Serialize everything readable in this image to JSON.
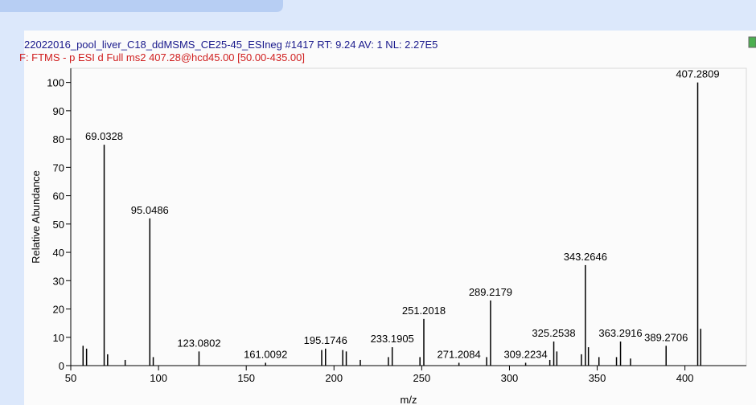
{
  "chart_data": {
    "type": "spectrum",
    "header": "22022016_pool_liver_C18_ddMSMS_CE25-45_ESIneg #1417  RT: 9.24  AV: 1  NL: 2.27E5",
    "filter": "F: FTMS - p ESI d Full ms2 407.28@hcd45.00 [50.00-435.00]",
    "x_label": "m/z",
    "y_label": "Relative Abundance",
    "color": "#000000",
    "x": [
      57,
      59,
      69.0328,
      71,
      81,
      95.0486,
      97,
      123.0802,
      161.0092,
      193,
      195.1746,
      205,
      207,
      215,
      231,
      233.1905,
      249,
      251.2018,
      271.2084,
      287,
      289.2179,
      309.2234,
      323,
      325.2538,
      327,
      341,
      343.2646,
      345,
      351,
      361,
      363.2916,
      369,
      389.2706,
      407.2809,
      409
    ],
    "values": [
      7,
      6,
      78,
      4,
      2,
      52,
      3,
      5,
      1,
      5.5,
      6,
      5.5,
      5,
      2,
      3,
      6.5,
      3,
      16.5,
      1,
      3,
      23,
      1,
      2,
      8.5,
      5,
      4,
      35.5,
      6.5,
      3,
      3,
      8.5,
      2.5,
      7,
      100,
      13
    ],
    "value_labels": [
      null,
      null,
      "69.0328",
      null,
      null,
      "95.0486",
      null,
      "123.0802",
      "161.0092",
      null,
      "195.1746",
      null,
      null,
      null,
      null,
      "233.1905",
      null,
      "251.2018",
      "271.2084",
      null,
      "289.2179",
      "309.2234",
      null,
      "325.2538",
      null,
      null,
      "343.2646",
      null,
      null,
      null,
      "363.2916",
      null,
      "389.2706",
      "407.2809",
      null
    ],
    "xlim": [
      50,
      435
    ],
    "xticks": [
      50,
      100,
      150,
      200,
      250,
      300,
      350,
      400
    ],
    "ylim": [
      0,
      105
    ],
    "yticks": [
      0,
      10,
      20,
      30,
      40,
      50,
      60,
      70,
      80,
      90,
      100
    ]
  }
}
